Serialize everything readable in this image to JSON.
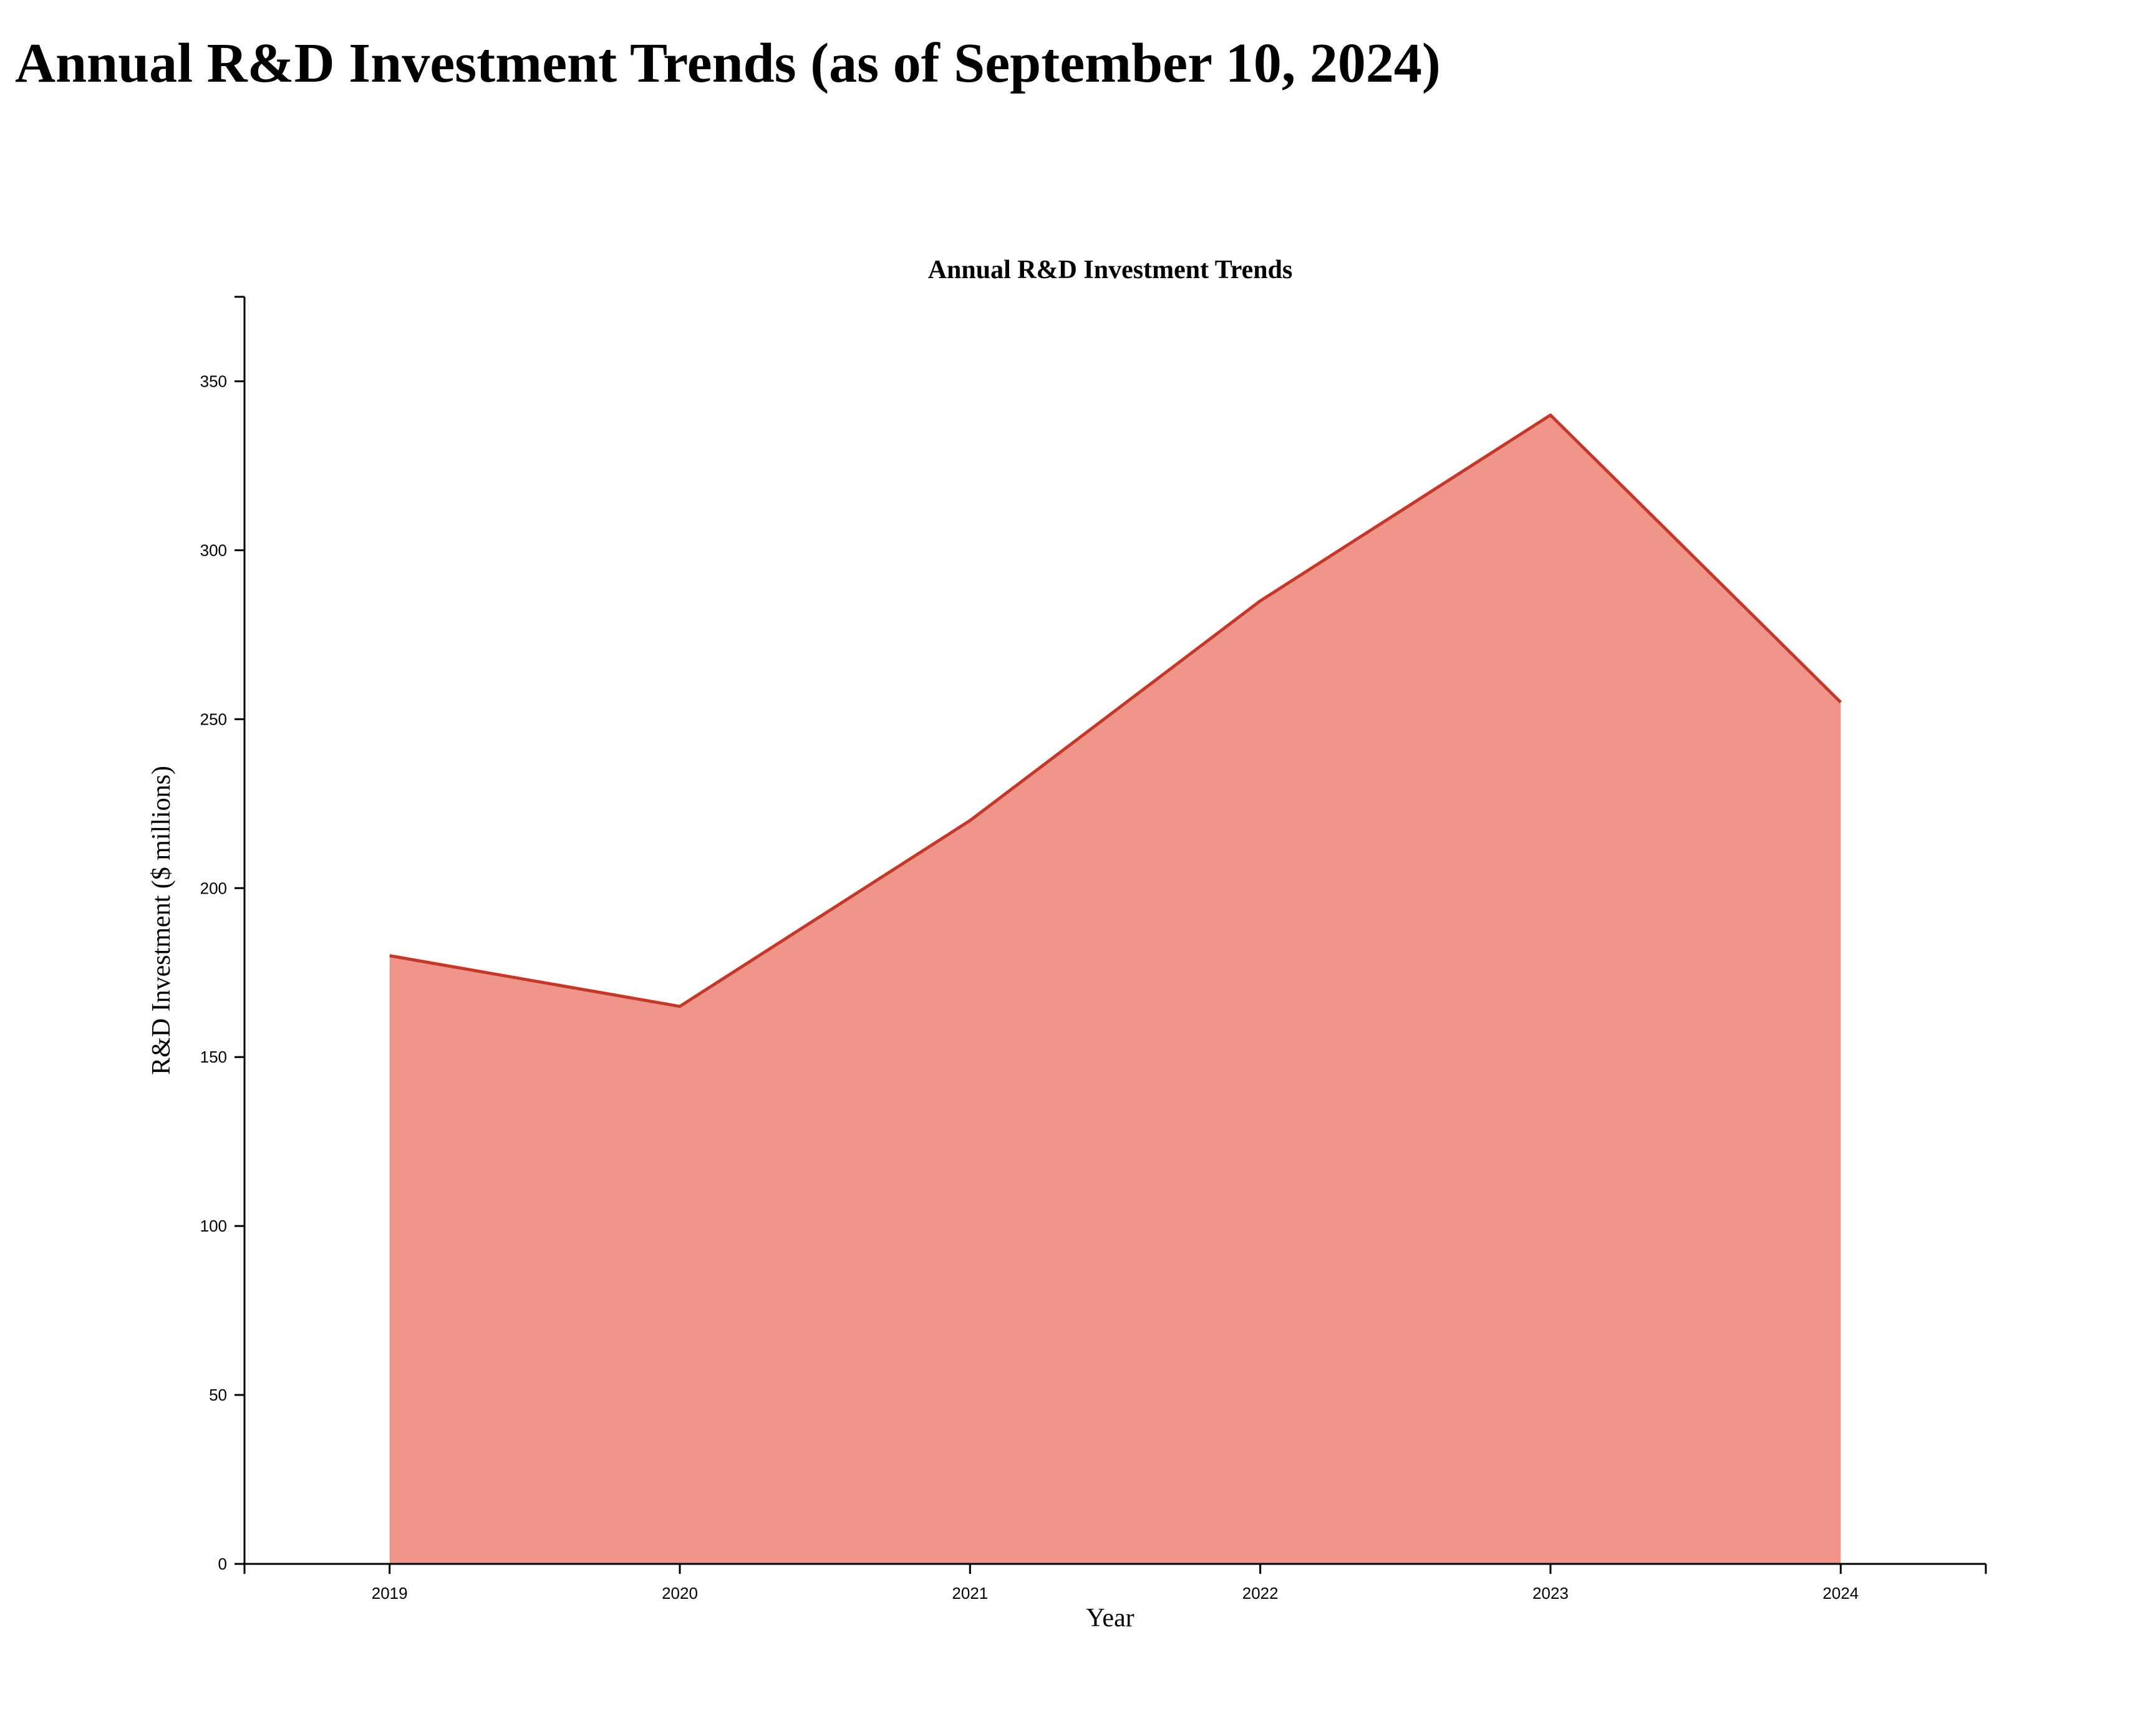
{
  "page": {
    "heading": "Annual R&D Investment Trends (as of September 10, 2024)"
  },
  "chart_data": {
    "type": "area",
    "title": "Annual R&D Investment Trends",
    "xlabel": "Year",
    "ylabel": "R&D Investment ($ millions)",
    "x": [
      "2019",
      "2020",
      "2021",
      "2022",
      "2023",
      "2024"
    ],
    "series": [
      {
        "values": [
          180,
          165,
          220,
          285,
          340,
          255
        ]
      }
    ],
    "ylim": [
      0,
      375
    ],
    "y_ticks": [
      0,
      50,
      100,
      150,
      200,
      250,
      300,
      350
    ],
    "grid": false,
    "legend": "none",
    "colors": {
      "fill": "#f1948a",
      "stroke": "#c0392b",
      "axis": "#000000"
    }
  }
}
